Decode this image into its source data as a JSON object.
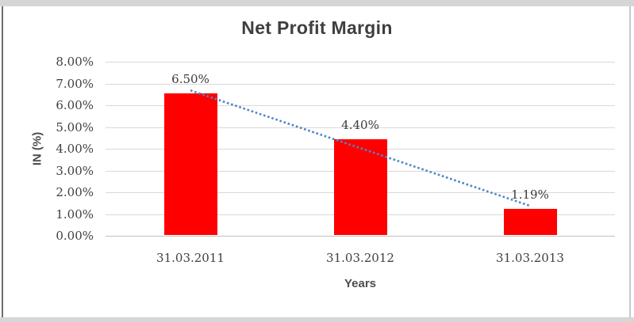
{
  "chart_data": {
    "type": "bar",
    "title": "Net Profit Margin",
    "categories": [
      "31.03.2011",
      "31.03.2012",
      "31.03.2013"
    ],
    "values": [
      6.5,
      4.4,
      1.19
    ],
    "data_labels": [
      "6.50%",
      "4.40%",
      "1.19%"
    ],
    "xlabel": "Years",
    "ylabel": "IN (%)",
    "ylim": [
      0,
      8
    ],
    "ytick_labels": [
      "0.00%",
      "1.00%",
      "2.00%",
      "3.00%",
      "4.00%",
      "5.00%",
      "6.00%",
      "7.00%",
      "8.00%"
    ],
    "grid": true,
    "legend": "none",
    "bar_color": "#ff0000",
    "gridline_color": "#d9d9d9",
    "trendline": {
      "type": "linear",
      "style": "dotted",
      "color": "#4f86c6"
    }
  }
}
